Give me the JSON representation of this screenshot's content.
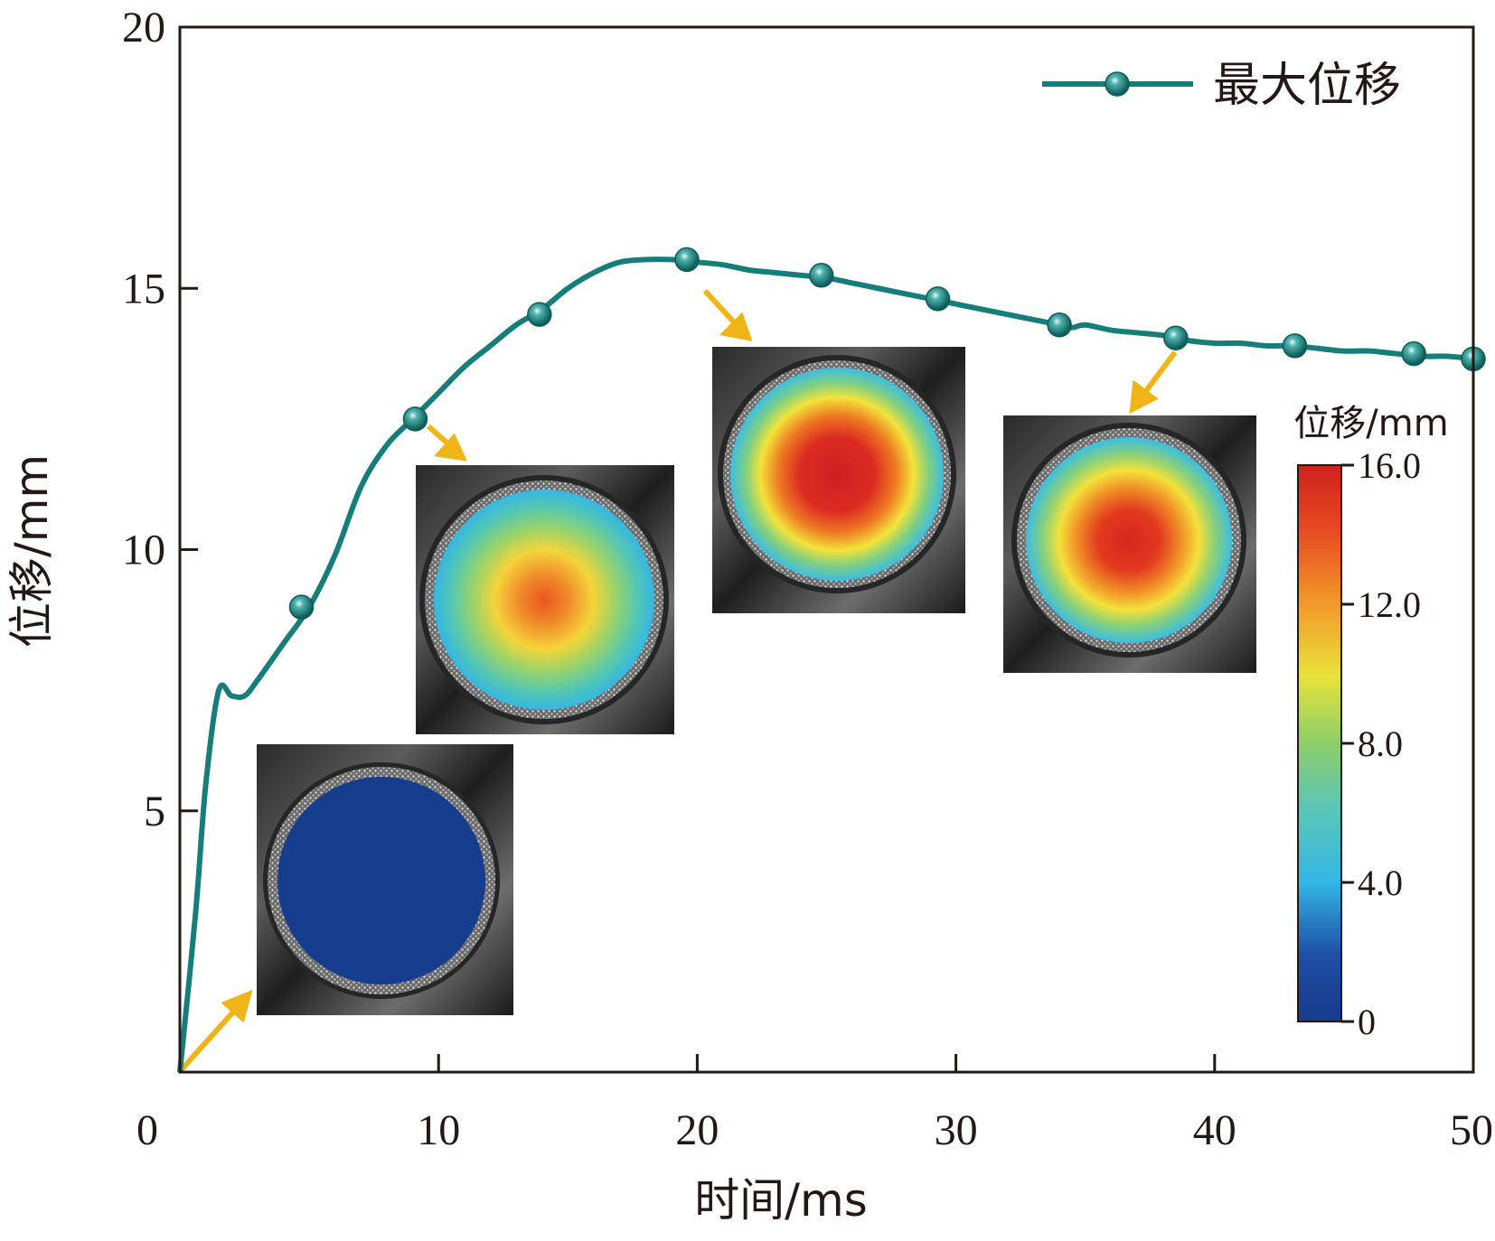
{
  "chart_data": {
    "type": "line",
    "xlabel": "时间/ms",
    "ylabel": "位移/mm",
    "xlim": [
      0,
      50
    ],
    "ylim": [
      0,
      20
    ],
    "xticks": [
      0,
      10,
      20,
      30,
      40,
      50
    ],
    "yticks": [
      5,
      10,
      15,
      20
    ],
    "grid": false,
    "legend_position": "top-right",
    "series": [
      {
        "name": "最大位移",
        "color": "#157e7a",
        "x": [
          0,
          0.6,
          1.0,
          1.5,
          2.0,
          2.5,
          3.0,
          4.0,
          5.0,
          6.0,
          7.0,
          8.0,
          9.0,
          10.0,
          11.0,
          12.0,
          13.0,
          14.0,
          15.0,
          16.0,
          17.0,
          18.0,
          19.0,
          20.0,
          21.0,
          22.0,
          23.0,
          24.0,
          25.0,
          26.0,
          27.0,
          28.0,
          29.0,
          30.0,
          31.0,
          32.0,
          33.0,
          34.0,
          34.5,
          35.0,
          36.0,
          37.0,
          38.0,
          39.0,
          40.0,
          41.0,
          42.0,
          43.0,
          44.0,
          45.0,
          46.0,
          47.0,
          48.0,
          49.0,
          50.0
        ],
        "y": [
          0.0,
          3.0,
          5.5,
          7.3,
          7.2,
          7.2,
          7.5,
          8.2,
          8.9,
          9.9,
          11.2,
          12.0,
          12.5,
          13.0,
          13.5,
          13.9,
          14.3,
          14.6,
          15.0,
          15.3,
          15.5,
          15.55,
          15.55,
          15.5,
          15.45,
          15.35,
          15.3,
          15.25,
          15.2,
          15.1,
          15.0,
          14.9,
          14.8,
          14.7,
          14.6,
          14.5,
          14.4,
          14.3,
          14.25,
          14.3,
          14.2,
          14.15,
          14.1,
          14.0,
          13.95,
          13.95,
          13.9,
          13.9,
          13.85,
          13.8,
          13.8,
          13.75,
          13.7,
          13.7,
          13.65
        ],
        "marker_x": [
          4.7,
          9.1,
          13.9,
          19.6,
          24.8,
          29.3,
          34.0,
          38.5,
          43.1,
          47.7,
          50.0
        ],
        "marker_y": [
          8.9,
          12.5,
          14.5,
          15.55,
          15.25,
          14.8,
          14.3,
          14.05,
          13.9,
          13.75,
          13.65
        ]
      }
    ],
    "colorbar": {
      "title": "位移/mm",
      "min": 0,
      "max": 16,
      "ticks": [
        "0",
        "4.0",
        "8.0",
        "12.0",
        "16.0"
      ],
      "tick_values": [
        0,
        4,
        8,
        12,
        16
      ]
    },
    "insets": [
      {
        "name": "inset-t1",
        "level": 0.0
      },
      {
        "name": "inset-t2",
        "level": 12.5
      },
      {
        "name": "inset-t3",
        "level": 15.5
      },
      {
        "name": "inset-t4",
        "level": 14.0
      }
    ]
  }
}
